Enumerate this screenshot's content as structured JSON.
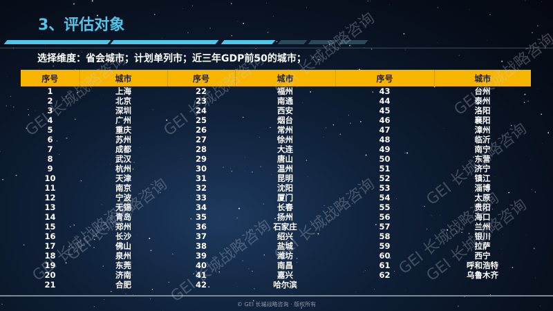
{
  "title": "3、评估对象",
  "subtitle": "选择维度：省会城市；计划单列市；近三年GDP前50的城市；",
  "headers": [
    "序号",
    "城市",
    "序号",
    "城市",
    "序号",
    "城市"
  ],
  "columns": [
    {
      "numbers": [
        "1",
        "2",
        "3",
        "4",
        "5",
        "6",
        "7",
        "8",
        "9",
        "10",
        "11",
        "12",
        "13",
        "14",
        "15",
        "16",
        "17",
        "18",
        "19",
        "20",
        "21"
      ],
      "cities": [
        "上海",
        "北京",
        "深圳",
        "广州",
        "重庆",
        "苏州",
        "成都",
        "武汉",
        "杭州",
        "天津",
        "南京",
        "宁波",
        "无锡",
        "青岛",
        "郑州",
        "长沙",
        "佛山",
        "泉州",
        "东莞",
        "济南",
        "合肥"
      ]
    },
    {
      "numbers": [
        "22",
        "23",
        "24",
        "25",
        "26",
        "27",
        "28",
        "29",
        "30",
        "31",
        "32",
        "33",
        "34",
        "35",
        "36",
        "37",
        "38",
        "39",
        "40",
        "41",
        "42"
      ],
      "cities": [
        "福州",
        "南通",
        "西安",
        "烟台",
        "常州",
        "徐州",
        "大连",
        "唐山",
        "温州",
        "昆明",
        "沈阳",
        "厦门",
        "长春",
        "扬州",
        "石家庄",
        "绍兴",
        "盐城",
        "潍坊",
        "南昌",
        "嘉兴",
        "哈尔滨"
      ]
    },
    {
      "numbers": [
        "43",
        "44",
        "45",
        "46",
        "47",
        "48",
        "49",
        "50",
        "51",
        "52",
        "53",
        "54",
        "55",
        "56",
        "57",
        "58",
        "59",
        "60",
        "61",
        "62"
      ],
      "cities": [
        "台州",
        "泰州",
        "洛阳",
        "襄阳",
        "漳州",
        "临沂",
        "南宁",
        "东营",
        "济宁",
        "镇江",
        "淄博",
        "太原",
        "贵阳",
        "海口",
        "兰州",
        "银川",
        "拉萨",
        "西宁",
        "呼和浩特",
        "乌鲁木齐"
      ]
    }
  ],
  "watermark": "GEI 长城战略咨询",
  "footer": "© GEI 长城战略咨询 · 版权所有",
  "colors": {
    "title": "#4fc6ea",
    "header_bg": "#f7b500",
    "accent_bar": "#4fc6ea"
  }
}
